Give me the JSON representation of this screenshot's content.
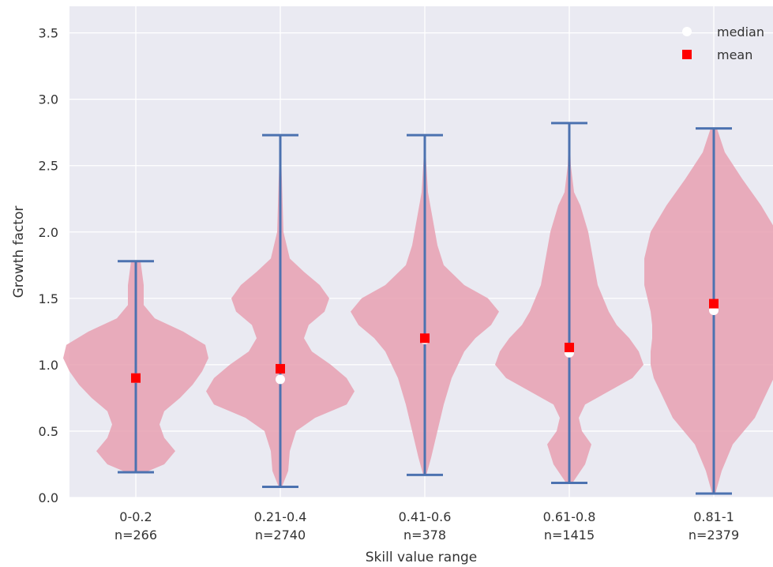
{
  "chart_data": {
    "type": "violin",
    "xlabel": "Skill value range",
    "ylabel": "Growth factor",
    "ylim": [
      0,
      3.7
    ],
    "yticks": [
      0.0,
      0.5,
      1.0,
      1.5,
      2.0,
      2.5,
      3.0,
      3.5
    ],
    "ytick_labels": [
      "0.0",
      "0.5",
      "1.0",
      "1.5",
      "2.0",
      "2.5",
      "3.0",
      "3.5"
    ],
    "grid": true,
    "legend_position": "top-right",
    "legend": [
      {
        "label": "median",
        "marker": "circle",
        "color": "#ffffff"
      },
      {
        "label": "mean",
        "marker": "square",
        "color": "#ff0000"
      }
    ],
    "colors": {
      "background": "#eaeaf2",
      "grid": "#ffffff",
      "violin_fill": "#e8a0b2",
      "whisker": "#4c72b0",
      "mean": "#ff0000",
      "median": "#ffffff"
    },
    "groups": [
      {
        "label": "0-0.2",
        "n_label": "n=266",
        "min": 0.19,
        "max": 1.78,
        "median": 0.9,
        "mean": 0.9,
        "density": [
          [
            0.19,
            0.06
          ],
          [
            0.25,
            0.18
          ],
          [
            0.35,
            0.25
          ],
          [
            0.45,
            0.18
          ],
          [
            0.55,
            0.15
          ],
          [
            0.65,
            0.18
          ],
          [
            0.75,
            0.28
          ],
          [
            0.85,
            0.36
          ],
          [
            0.95,
            0.42
          ],
          [
            1.05,
            0.46
          ],
          [
            1.15,
            0.44
          ],
          [
            1.25,
            0.3
          ],
          [
            1.35,
            0.12
          ],
          [
            1.45,
            0.05
          ],
          [
            1.6,
            0.05
          ],
          [
            1.78,
            0.03
          ]
        ]
      },
      {
        "label": "0.21-0.4",
        "n_label": "n=2740",
        "min": 0.08,
        "max": 2.73,
        "median": 0.89,
        "mean": 0.97,
        "density": [
          [
            0.08,
            0.01
          ],
          [
            0.2,
            0.05
          ],
          [
            0.35,
            0.06
          ],
          [
            0.5,
            0.1
          ],
          [
            0.6,
            0.22
          ],
          [
            0.7,
            0.42
          ],
          [
            0.8,
            0.47
          ],
          [
            0.9,
            0.42
          ],
          [
            1.0,
            0.32
          ],
          [
            1.1,
            0.2
          ],
          [
            1.2,
            0.15
          ],
          [
            1.3,
            0.18
          ],
          [
            1.4,
            0.28
          ],
          [
            1.5,
            0.31
          ],
          [
            1.6,
            0.25
          ],
          [
            1.7,
            0.15
          ],
          [
            1.8,
            0.06
          ],
          [
            2.0,
            0.02
          ],
          [
            2.4,
            0.01
          ],
          [
            2.73,
            0.0
          ]
        ]
      },
      {
        "label": "0.41-0.6",
        "n_label": "n=378",
        "min": 0.17,
        "max": 2.73,
        "median": 1.19,
        "mean": 1.2,
        "density": [
          [
            0.17,
            0.01
          ],
          [
            0.3,
            0.04
          ],
          [
            0.5,
            0.08
          ],
          [
            0.7,
            0.12
          ],
          [
            0.9,
            0.17
          ],
          [
            1.1,
            0.25
          ],
          [
            1.2,
            0.32
          ],
          [
            1.3,
            0.42
          ],
          [
            1.4,
            0.47
          ],
          [
            1.5,
            0.4
          ],
          [
            1.6,
            0.25
          ],
          [
            1.75,
            0.12
          ],
          [
            1.9,
            0.08
          ],
          [
            2.1,
            0.05
          ],
          [
            2.3,
            0.02
          ],
          [
            2.5,
            0.01
          ],
          [
            2.73,
            0.0
          ]
        ]
      },
      {
        "label": "0.61-0.8",
        "n_label": "n=1415",
        "min": 0.11,
        "max": 2.82,
        "median": 1.09,
        "mean": 1.13,
        "density": [
          [
            0.11,
            0.02
          ],
          [
            0.25,
            0.1
          ],
          [
            0.4,
            0.14
          ],
          [
            0.5,
            0.08
          ],
          [
            0.6,
            0.06
          ],
          [
            0.7,
            0.1
          ],
          [
            0.8,
            0.25
          ],
          [
            0.9,
            0.4
          ],
          [
            1.0,
            0.47
          ],
          [
            1.1,
            0.44
          ],
          [
            1.2,
            0.38
          ],
          [
            1.3,
            0.3
          ],
          [
            1.4,
            0.25
          ],
          [
            1.6,
            0.18
          ],
          [
            1.8,
            0.15
          ],
          [
            2.0,
            0.12
          ],
          [
            2.2,
            0.07
          ],
          [
            2.3,
            0.03
          ],
          [
            2.5,
            0.01
          ],
          [
            2.82,
            0.0
          ]
        ]
      },
      {
        "label": "0.81-1",
        "n_label": "n=2379",
        "min": 0.03,
        "max": 2.78,
        "median": 1.41,
        "mean": 1.46,
        "density": [
          [
            0.03,
            0.01
          ],
          [
            0.2,
            0.05
          ],
          [
            0.4,
            0.12
          ],
          [
            0.6,
            0.26
          ],
          [
            0.8,
            0.34
          ],
          [
            0.9,
            0.38
          ],
          [
            1.0,
            0.4
          ],
          [
            1.1,
            0.4
          ],
          [
            1.2,
            0.39
          ],
          [
            1.3,
            0.39
          ],
          [
            1.4,
            0.4
          ],
          [
            1.5,
            0.42
          ],
          [
            1.6,
            0.44
          ],
          [
            1.8,
            0.44
          ],
          [
            2.0,
            0.4
          ],
          [
            2.2,
            0.3
          ],
          [
            2.4,
            0.18
          ],
          [
            2.6,
            0.07
          ],
          [
            2.78,
            0.02
          ]
        ]
      }
    ]
  }
}
